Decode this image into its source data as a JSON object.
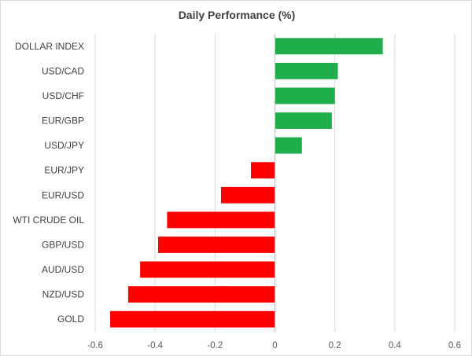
{
  "chart_data": {
    "type": "bar",
    "orientation": "horizontal",
    "title": "Daily Performance (%)",
    "xlabel": "",
    "ylabel": "",
    "categories": [
      "DOLLAR INDEX",
      "USD/CAD",
      "USD/CHF",
      "EUR/GBP",
      "USD/JPY",
      "EUR/JPY",
      "EUR/USD",
      "WTI CRUDE OIL",
      "GBP/USD",
      "AUD/USD",
      "NZD/USD",
      "GOLD"
    ],
    "values": [
      0.36,
      0.21,
      0.2,
      0.19,
      0.09,
      -0.08,
      -0.18,
      -0.36,
      -0.39,
      -0.45,
      -0.49,
      -0.55
    ],
    "xlim": [
      -0.6,
      0.6
    ],
    "xticks": [
      -0.6,
      -0.4,
      -0.2,
      0,
      0.2,
      0.4,
      0.6
    ],
    "xtick_labels": [
      "-0.6",
      "-0.4",
      "-0.2",
      "0",
      "0.2",
      "0.4",
      "0.6"
    ],
    "grid": "vertical",
    "legend": "none",
    "colors": {
      "positive": "#1fae4b",
      "negative": "#ff0000",
      "grid": "#d9d9d9",
      "axis": "#bfbfbf"
    }
  }
}
